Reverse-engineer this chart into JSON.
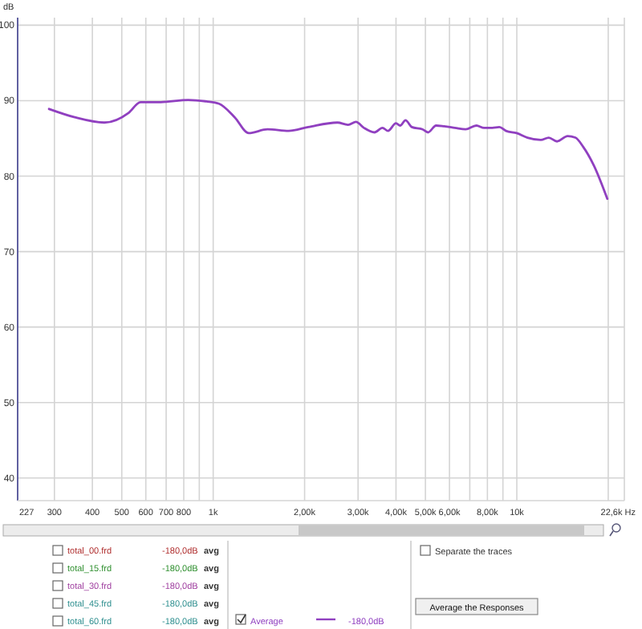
{
  "chart_data": {
    "type": "line",
    "ylabel": "dB",
    "log": "x",
    "grid": true,
    "legend": "bottom",
    "marker": "none",
    "line_style": "solid",
    "xlim": [
      227,
      22600
    ],
    "ylim": [
      37,
      101
    ],
    "xticks": [
      {
        "value": 227,
        "label": "227"
      },
      300,
      400,
      500,
      600,
      700,
      800,
      {
        "value": 900,
        "label": null
      },
      {
        "value": 1000,
        "label": "1k"
      },
      {
        "value": 2000,
        "label": "2,00k"
      },
      {
        "value": 3000,
        "label": "3,00k"
      },
      {
        "value": 4000,
        "label": "4,00k"
      },
      {
        "value": 5000,
        "label": "5,00k"
      },
      {
        "value": 6000,
        "label": "6,00k"
      },
      {
        "value": 7000,
        "label": null
      },
      {
        "value": 8000,
        "label": "8,00k"
      },
      {
        "value": 9000,
        "label": null
      },
      {
        "value": 10000,
        "label": "10k"
      },
      {
        "value": 20000,
        "label": null
      },
      {
        "value": 22600,
        "label": "22,6k"
      }
    ],
    "xlabel": "Hz",
    "yticks": [
      40,
      50,
      60,
      70,
      80,
      90,
      100
    ],
    "x": [
      288,
      350,
      438,
      527,
      576,
      672,
      827,
      950,
      1045,
      1177,
      1309,
      1510,
      1772,
      2055,
      2565,
      2781,
      2953,
      3136,
      3400,
      3610,
      3765,
      4000,
      4128,
      4300,
      4512,
      4895,
      5100,
      5420,
      5760,
      6250,
      6780,
      7360,
      7800,
      8300,
      8760,
      9210,
      9990,
      10840,
      11990,
      12740,
      13560,
      14700,
      15590,
      16530,
      17940,
      19860
    ],
    "series": [
      {
        "name": "Average",
        "color": "#9040c0",
        "values": [
          88.9,
          87.8,
          87.1,
          88.4,
          89.8,
          89.8,
          90.1,
          89.9,
          89.6,
          87.8,
          85.7,
          86.2,
          86.0,
          86.5,
          87.1,
          86.8,
          87.2,
          86.4,
          85.8,
          86.4,
          86.0,
          87.0,
          86.7,
          87.4,
          86.5,
          86.2,
          85.8,
          86.7,
          86.6,
          86.4,
          86.2,
          86.7,
          86.4,
          86.4,
          86.5,
          86.0,
          85.7,
          85.1,
          84.8,
          85.1,
          84.6,
          85.3,
          85.1,
          83.9,
          81.4,
          77.0
        ]
      }
    ],
    "annotations": [
      "total_00.frd",
      "total_15.frd",
      "total_30.frd",
      "total_45.frd",
      "total_60.frd",
      "-180,0dB",
      "-180,0dB",
      "-180,0dB",
      "-180,0dB",
      "-180,0dB",
      "avg",
      "avg",
      "avg",
      "avg",
      "avg",
      "-180,0dB",
      "Separate the traces",
      "Average the Responses"
    ]
  }
}
